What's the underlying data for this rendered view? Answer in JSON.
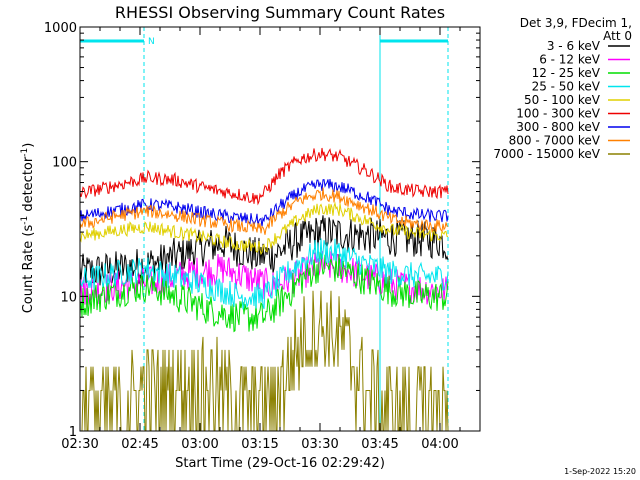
{
  "chart_data": {
    "type": "line",
    "title": "RHESSI Observing Summary Count Rates",
    "xlabel": "Start Time (29-Oct-16 02:29:42)",
    "ylabel_main": "Count Rate (s",
    "ylabel_sup1": "-1",
    "ylabel_mid": " detector",
    "ylabel_sup2": "-1",
    "ylabel_end": ")",
    "yscale": "log",
    "ylim": [
      1,
      1000
    ],
    "xlim_minutes": [
      0,
      100
    ],
    "x_ticks": [
      {
        "m": 0,
        "label": "02:30"
      },
      {
        "m": 15,
        "label": "02:45"
      },
      {
        "m": 30,
        "label": "03:00"
      },
      {
        "m": 45,
        "label": "03:15"
      },
      {
        "m": 60,
        "label": "03:30"
      },
      {
        "m": 75,
        "label": "03:45"
      },
      {
        "m": 90,
        "label": "04:00"
      }
    ],
    "y_ticks": [
      {
        "v": 1,
        "label": "1"
      },
      {
        "v": 10,
        "label": "10"
      },
      {
        "v": 100,
        "label": "100"
      },
      {
        "v": 1000,
        "label": "1000"
      }
    ],
    "legend_header": [
      "Det 3,9, FDecim 1,",
      "Att 0"
    ],
    "night_flag_label": "N",
    "night_intervals": [
      [
        0,
        16
      ],
      [
        75,
        92
      ]
    ],
    "series": [
      {
        "name": "3 - 6 keV",
        "color": "#000000",
        "keys": [
          [
            0,
            15
          ],
          [
            10,
            16
          ],
          [
            20,
            18
          ],
          [
            28,
            22
          ],
          [
            36,
            25
          ],
          [
            44,
            20
          ],
          [
            48,
            20
          ],
          [
            54,
            26
          ],
          [
            60,
            30
          ],
          [
            66,
            29
          ],
          [
            72,
            28
          ],
          [
            80,
            27
          ],
          [
            90,
            26
          ],
          [
            92,
            24
          ]
        ],
        "noise": 0.14
      },
      {
        "name": "6 - 12 keV",
        "color": "#ff00ff",
        "keys": [
          [
            0,
            11
          ],
          [
            10,
            12
          ],
          [
            20,
            13
          ],
          [
            28,
            15
          ],
          [
            36,
            16
          ],
          [
            44,
            13
          ],
          [
            48,
            12
          ],
          [
            54,
            14
          ],
          [
            60,
            17
          ],
          [
            66,
            16
          ],
          [
            72,
            14
          ],
          [
            80,
            12
          ],
          [
            90,
            11
          ],
          [
            92,
            11
          ]
        ],
        "noise": 0.12
      },
      {
        "name": "12 - 25 keV",
        "color": "#00dd00",
        "keys": [
          [
            0,
            9
          ],
          [
            10,
            11
          ],
          [
            17,
            12
          ],
          [
            24,
            10
          ],
          [
            32,
            8
          ],
          [
            40,
            7
          ],
          [
            46,
            7
          ],
          [
            50,
            9
          ],
          [
            55,
            13
          ],
          [
            60,
            17
          ],
          [
            65,
            16
          ],
          [
            72,
            13
          ],
          [
            78,
            11
          ],
          [
            85,
            10
          ],
          [
            92,
            10
          ]
        ],
        "noise": 0.12
      },
      {
        "name": "25 - 50 keV",
        "color": "#00e5ee",
        "keys": [
          [
            0,
            13
          ],
          [
            10,
            15
          ],
          [
            17,
            16
          ],
          [
            24,
            14
          ],
          [
            32,
            12
          ],
          [
            40,
            10
          ],
          [
            46,
            10
          ],
          [
            50,
            13
          ],
          [
            55,
            18
          ],
          [
            60,
            22
          ],
          [
            65,
            21
          ],
          [
            72,
            17
          ],
          [
            78,
            15
          ],
          [
            85,
            14
          ],
          [
            92,
            14
          ]
        ],
        "noise": 0.1
      },
      {
        "name": "50 - 100 keV",
        "color": "#e0d000",
        "keys": [
          [
            0,
            28
          ],
          [
            10,
            31
          ],
          [
            17,
            33
          ],
          [
            24,
            30
          ],
          [
            32,
            27
          ],
          [
            40,
            24
          ],
          [
            46,
            23
          ],
          [
            50,
            29
          ],
          [
            55,
            38
          ],
          [
            60,
            45
          ],
          [
            65,
            44
          ],
          [
            72,
            36
          ],
          [
            78,
            31
          ],
          [
            85,
            29
          ],
          [
            92,
            28
          ]
        ],
        "noise": 0.05
      },
      {
        "name": "100 - 300 keV",
        "color": "#ee0000",
        "keys": [
          [
            0,
            58
          ],
          [
            10,
            68
          ],
          [
            17,
            76
          ],
          [
            24,
            73
          ],
          [
            32,
            63
          ],
          [
            40,
            57
          ],
          [
            44,
            53
          ],
          [
            46,
            58
          ],
          [
            50,
            82
          ],
          [
            55,
            105
          ],
          [
            60,
            115
          ],
          [
            65,
            108
          ],
          [
            72,
            84
          ],
          [
            78,
            64
          ],
          [
            85,
            60
          ],
          [
            92,
            60
          ]
        ],
        "noise": 0.05
      },
      {
        "name": "300 - 800 keV",
        "color": "#0000ee",
        "keys": [
          [
            0,
            39
          ],
          [
            10,
            44
          ],
          [
            17,
            48
          ],
          [
            24,
            46
          ],
          [
            32,
            41
          ],
          [
            40,
            38
          ],
          [
            46,
            36
          ],
          [
            50,
            47
          ],
          [
            55,
            60
          ],
          [
            60,
            68
          ],
          [
            65,
            65
          ],
          [
            72,
            54
          ],
          [
            78,
            43
          ],
          [
            85,
            40
          ],
          [
            92,
            39
          ]
        ],
        "noise": 0.05
      },
      {
        "name": "800 - 7000 keV",
        "color": "#ff8000",
        "keys": [
          [
            0,
            34
          ],
          [
            10,
            40
          ],
          [
            17,
            43
          ],
          [
            24,
            40
          ],
          [
            32,
            36
          ],
          [
            40,
            33
          ],
          [
            46,
            31
          ],
          [
            50,
            41
          ],
          [
            55,
            52
          ],
          [
            60,
            58
          ],
          [
            65,
            55
          ],
          [
            72,
            45
          ],
          [
            78,
            37
          ],
          [
            85,
            34
          ],
          [
            92,
            33
          ]
        ],
        "noise": 0.05
      },
      {
        "name": "7000 - 15000 keV",
        "color": "#8b8000",
        "keys": [
          [
            0,
            1.5
          ],
          [
            10,
            1.6
          ],
          [
            17,
            2
          ],
          [
            25,
            2.2
          ],
          [
            32,
            2.3
          ],
          [
            40,
            1.8
          ],
          [
            44,
            1.5
          ],
          [
            48,
            1.5
          ],
          [
            52,
            3
          ],
          [
            56,
            5
          ],
          [
            60,
            6
          ],
          [
            66,
            4.5
          ],
          [
            70,
            2.5
          ],
          [
            76,
            1.5
          ],
          [
            85,
            1.5
          ],
          [
            92,
            1.5
          ]
        ],
        "noise": 0.35
      }
    ]
  },
  "footer": {
    "date_stamp": "1-Sep-2022 15:20"
  }
}
